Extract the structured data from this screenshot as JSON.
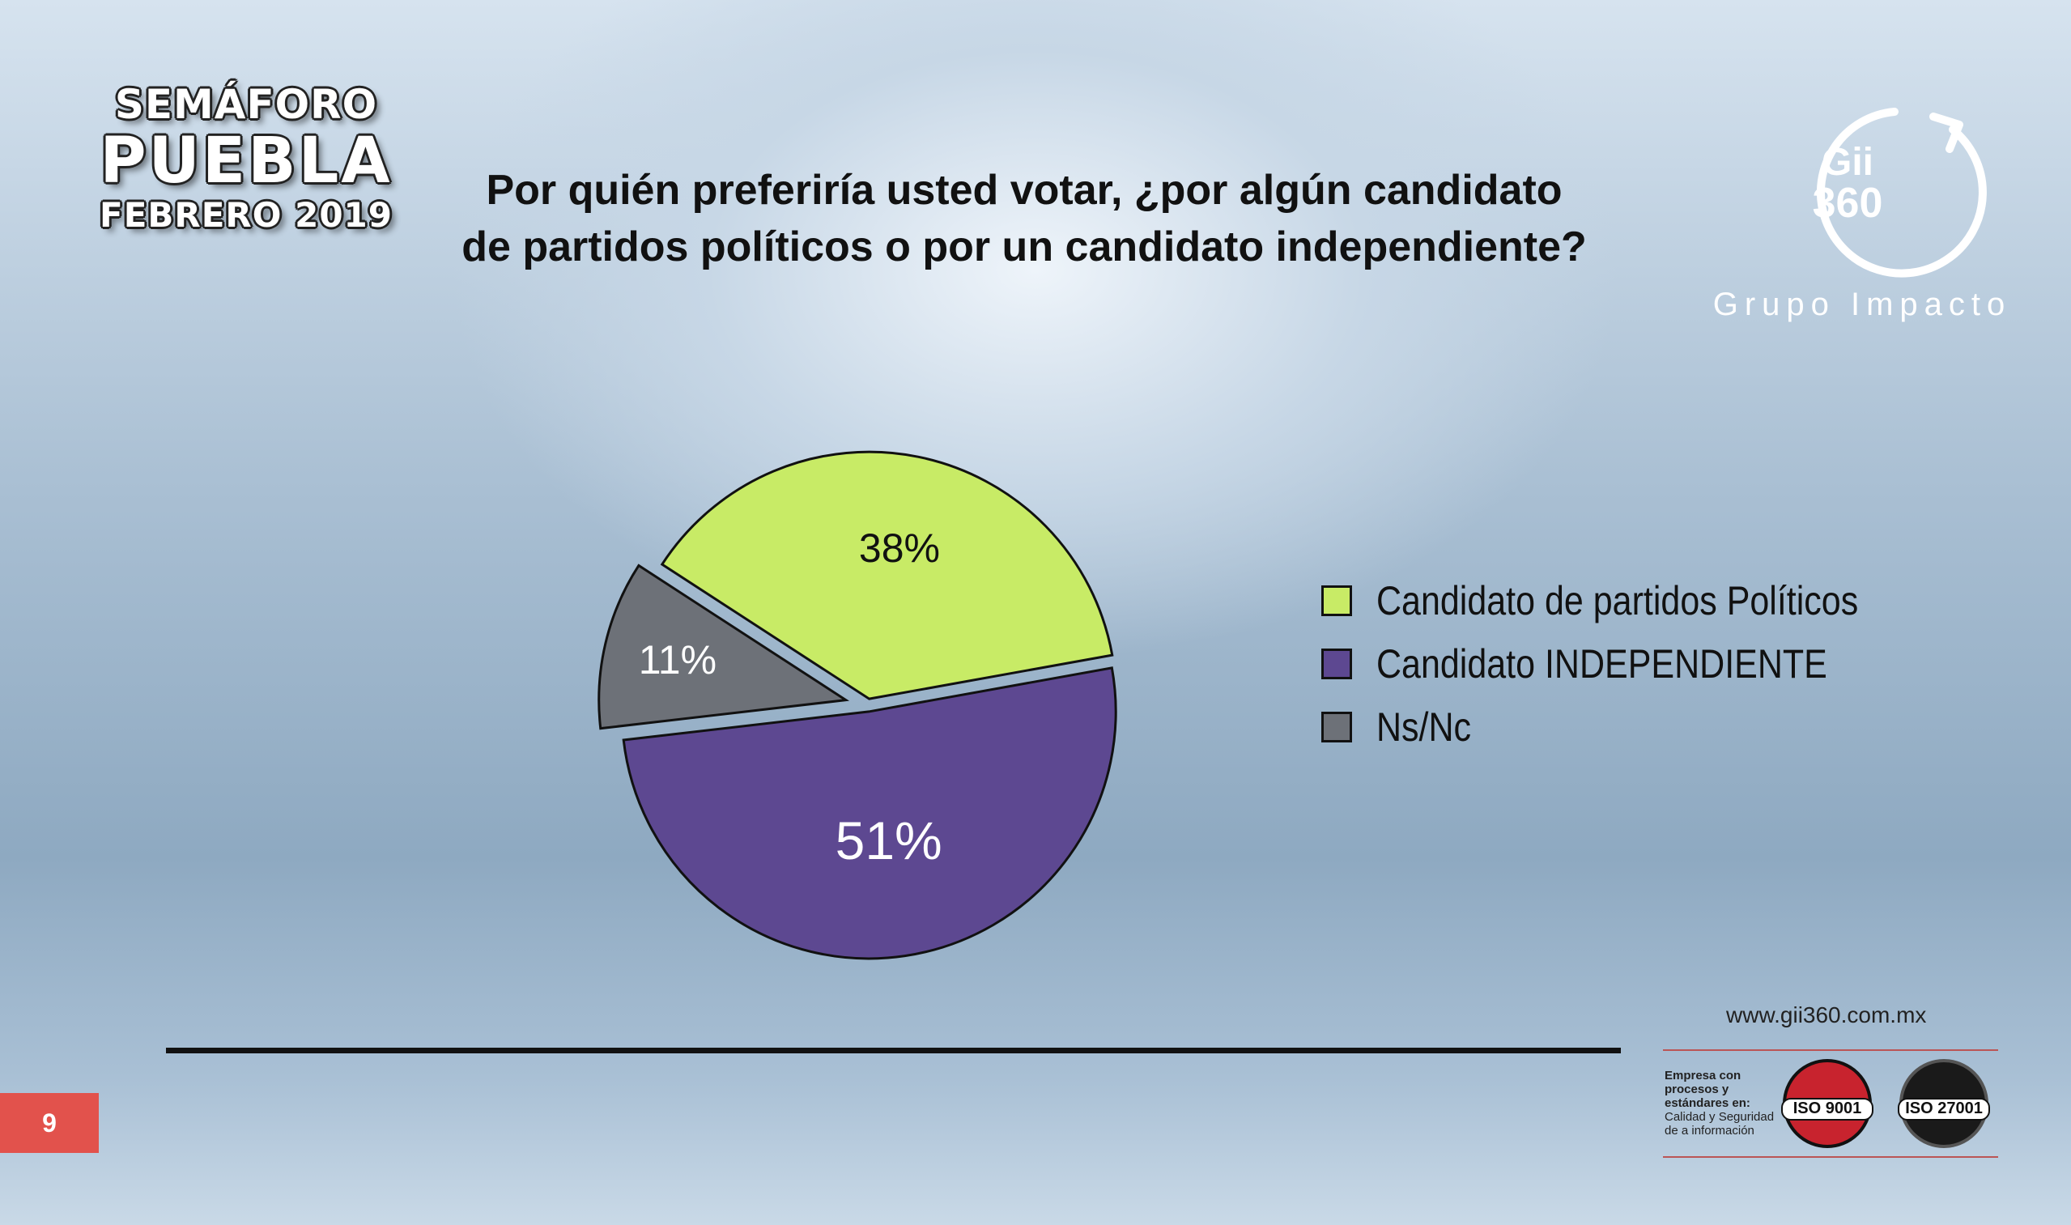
{
  "brand": {
    "line1": "SEMÁFORO",
    "line2": "PUEBLA",
    "line3": "FEBRERO 2019"
  },
  "title": {
    "line1": "Por quién preferiría usted votar, ¿por algún candidato",
    "line2": "de partidos políticos o por un candidato independiente?"
  },
  "logo": {
    "mark_top": "Gii",
    "mark_bottom": "360",
    "caption": "Grupo Impacto",
    "icon": "circular-arrow-icon"
  },
  "chart_data": {
    "type": "pie",
    "categories": [
      "Candidato de partidos Políticos",
      "Candidato INDEPENDIENTE",
      "Ns/Nc"
    ],
    "values": [
      38,
      51,
      11
    ],
    "labels": [
      "38%",
      "51%",
      "11%"
    ],
    "colors": [
      "#c8eb66",
      "#5d4891",
      "#6d7178"
    ],
    "label_colors": [
      "#111111",
      "#ffffff",
      "#ffffff"
    ],
    "legend_position": "right",
    "exploded": true
  },
  "footer": {
    "url": "www.gii360.com.mx",
    "cert_text_bold": "Empresa con procesos y estándares en:",
    "cert_text": "Calidad y Seguridad de a información",
    "badge1": "ISO 9001",
    "badge1_color": "#c8232e",
    "badge2": "ISO 27001",
    "badge2_color": "#1a1a1a",
    "page_number": "9",
    "page_number_color": "#e2524c"
  }
}
